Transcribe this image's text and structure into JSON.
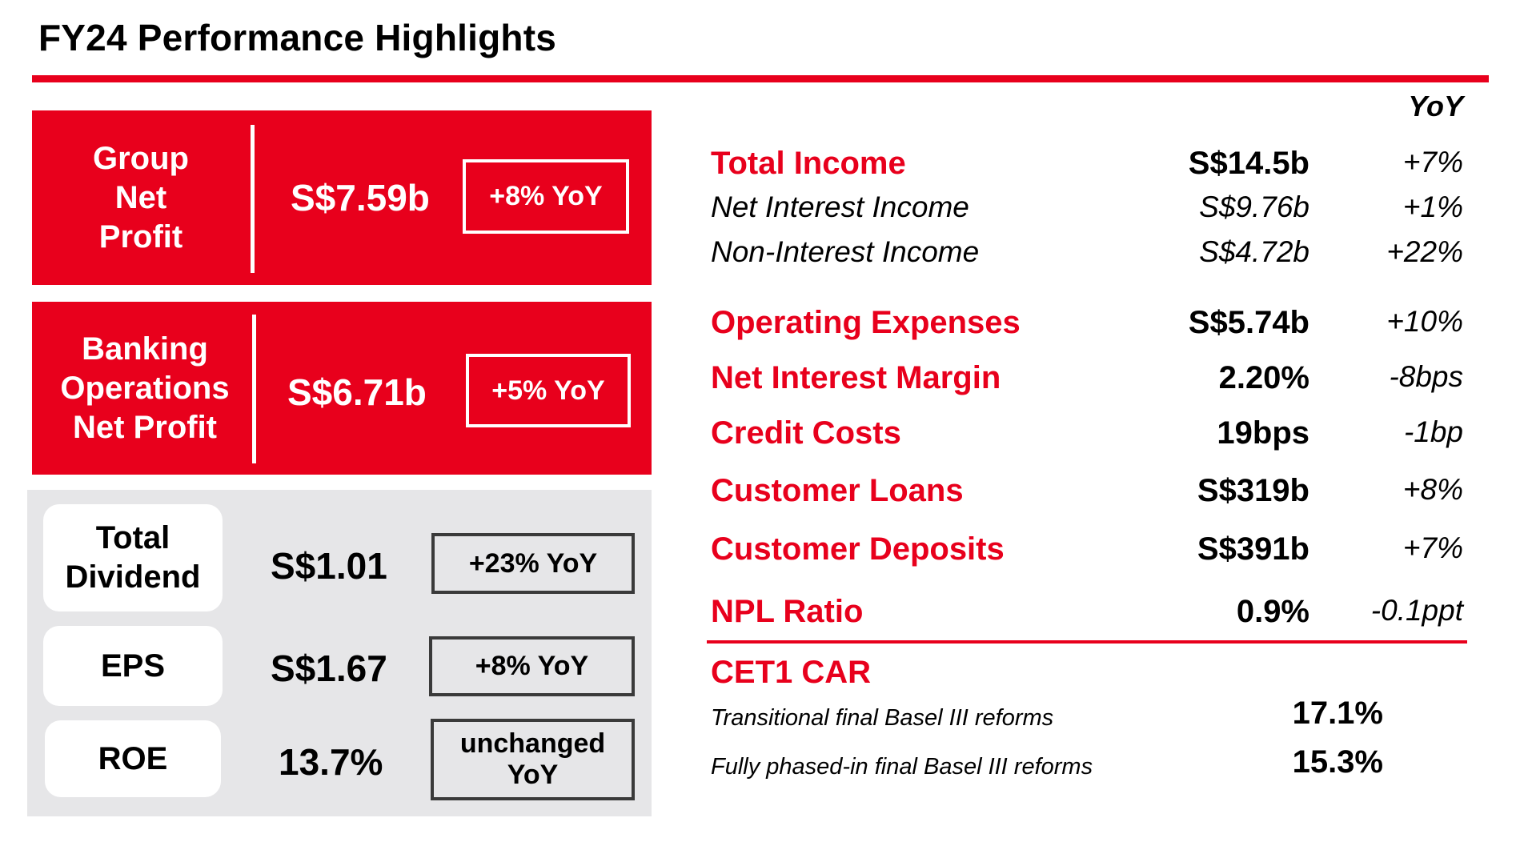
{
  "header": {
    "title": "FY24 Performance Highlights"
  },
  "left": {
    "group_net_profit": {
      "label_lines": [
        "Group",
        "Net",
        "Profit"
      ],
      "value": "S$7.59b",
      "yoy": "+8% YoY"
    },
    "banking_net_profit": {
      "label_lines": [
        "Banking",
        "Operations",
        "Net Profit"
      ],
      "value": "S$6.71b",
      "yoy": "+5% YoY"
    },
    "total_dividend": {
      "label_lines": [
        "Total",
        "Dividend"
      ],
      "value": "S$1.01",
      "yoy": "+23% YoY"
    },
    "eps": {
      "label": "EPS",
      "value": "S$1.67",
      "yoy": "+8% YoY"
    },
    "roe": {
      "label": "ROE",
      "value": "13.7%",
      "yoy_lines": [
        "unchanged",
        "YoY"
      ]
    }
  },
  "right": {
    "yoy_header": "YoY",
    "rows": [
      {
        "name": "Total Income",
        "value": "S$14.5b",
        "yoy": "+7%"
      },
      {
        "name": "Net Interest Income",
        "value": "S$9.76b",
        "yoy": "+1%"
      },
      {
        "name": "Non-Interest Income",
        "value": "S$4.72b",
        "yoy": "+22%"
      },
      {
        "name": "Operating Expenses",
        "value": "S$5.74b",
        "yoy": "+10%"
      },
      {
        "name": "Net Interest Margin",
        "value": "2.20%",
        "yoy": "-8bps"
      },
      {
        "name": "Credit Costs",
        "value": "19bps",
        "yoy": "-1bp"
      },
      {
        "name": "Customer Loans",
        "value": "S$319b",
        "yoy": "+8%"
      },
      {
        "name": "Customer Deposits",
        "value": "S$391b",
        "yoy": "+7%"
      },
      {
        "name": "NPL Ratio",
        "value": "0.9%",
        "yoy": "-0.1ppt"
      }
    ],
    "cet1": {
      "title": "CET1 CAR",
      "rows": [
        {
          "label": "Transitional final Basel III reforms",
          "value": "17.1%"
        },
        {
          "label": "Fully phased-in final Basel III reforms",
          "value": "15.3%"
        }
      ]
    }
  },
  "colors": {
    "accent_red": "#e8001c",
    "panel_grey": "#e6e6e8",
    "box_border": "#3a3a3a"
  }
}
